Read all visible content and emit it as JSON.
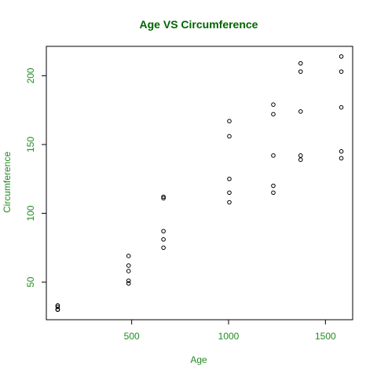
{
  "chart_data": {
    "type": "scatter",
    "title": "Age VS Circumference",
    "xlabel": "Age",
    "ylabel": "Circumference",
    "x": [
      118,
      484,
      664,
      1004,
      1231,
      1372,
      1582,
      118,
      484,
      664,
      1004,
      1231,
      1372,
      1582,
      118,
      484,
      664,
      1004,
      1231,
      1372,
      1582,
      118,
      484,
      664,
      1004,
      1231,
      1372,
      1582,
      118,
      484,
      664,
      1004,
      1231,
      1372,
      1582
    ],
    "values": [
      30,
      58,
      87,
      115,
      120,
      142,
      145,
      33,
      69,
      111,
      156,
      172,
      203,
      203,
      30,
      51,
      75,
      108,
      115,
      139,
      140,
      32,
      62,
      112,
      167,
      179,
      209,
      214,
      30,
      49,
      81,
      125,
      142,
      174,
      177
    ],
    "xlim": [
      59.44,
      1640.56
    ],
    "ylim": [
      22.64,
      221.36
    ],
    "xticks": [
      500,
      1000,
      1500
    ],
    "yticks": [
      50,
      100,
      150,
      200
    ],
    "color": "#000000",
    "title_color": "#006400",
    "label_color": "#228b22"
  }
}
